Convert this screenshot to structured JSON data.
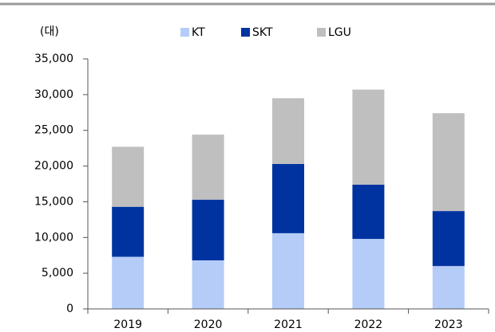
{
  "chart_data": {
    "type": "stacked_bar",
    "y_label": "(대)",
    "categories": [
      "2019",
      "2020",
      "2021",
      "2022",
      "2023"
    ],
    "series": [
      {
        "name": "KT",
        "color": "#b4ccf7",
        "values": [
          7300,
          6800,
          10600,
          9800,
          6000
        ]
      },
      {
        "name": "SKT",
        "color": "#0033a0",
        "values": [
          7000,
          8500,
          9700,
          7600,
          7700
        ]
      },
      {
        "name": "LGU",
        "color": "#bfbfbf",
        "values": [
          8400,
          9100,
          9200,
          13300,
          13700
        ]
      }
    ],
    "ylim": [
      0,
      35000
    ],
    "yticks": [
      0,
      {
        "value": 5000,
        "label": "5,000"
      },
      {
        "value": 10000,
        "label": "10,000"
      },
      {
        "value": 15000,
        "label": "15,000"
      },
      {
        "value": 20000,
        "label": "20,000"
      },
      {
        "value": 25000,
        "label": "25,000"
      },
      {
        "value": 30000,
        "label": "30,000"
      },
      {
        "value": 35000,
        "label": "35,000"
      }
    ],
    "grid": false
  }
}
